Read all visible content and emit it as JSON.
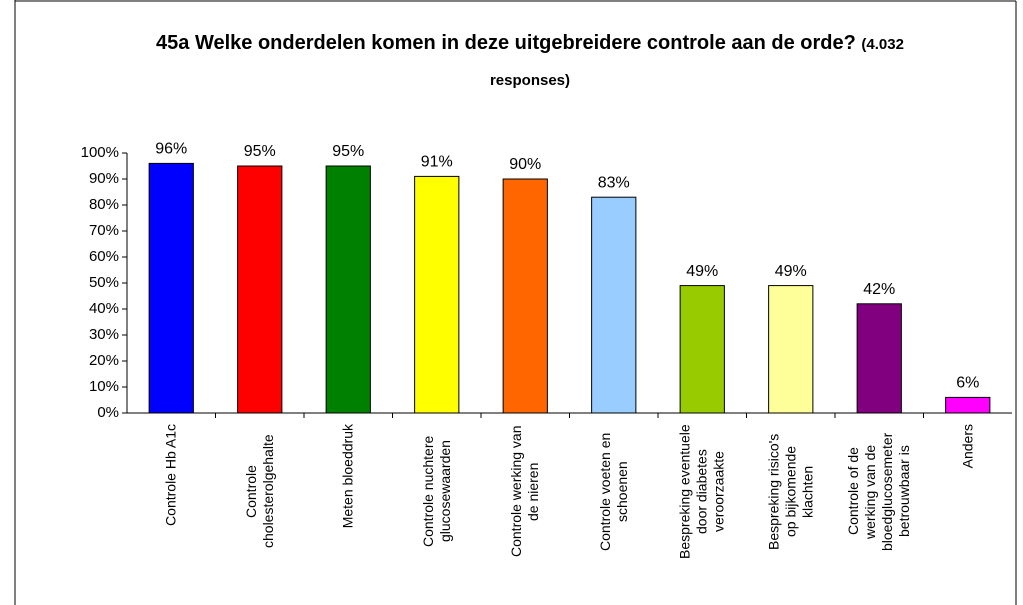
{
  "chart_data": {
    "type": "bar",
    "title": "45a Welke onderdelen komen in deze uitgebreidere controle aan de orde?",
    "subtitle": "(4.032 responses)",
    "categories": [
      "Controle Hb A1c",
      "Controle cholesterolgehalte",
      "Meten bloeddruk",
      "Controle nuchtere glucosewaarden",
      "Controle werking van de nieren",
      "Controle voeten en schoenen",
      "Bespreking eventuele door diabetes veroorzaakte",
      "Bespreking risico's op bijkomende klachten",
      "Controle of de werking van de bloedglucosemeter betrouwbaar is",
      "Anders"
    ],
    "values": [
      96,
      95,
      95,
      91,
      90,
      83,
      49,
      49,
      42,
      6
    ],
    "value_labels": [
      "96%",
      "95%",
      "95%",
      "91%",
      "90%",
      "83%",
      "49%",
      "49%",
      "42%",
      "6%"
    ],
    "colors": [
      "#0000ff",
      "#ff0000",
      "#008000",
      "#ffff00",
      "#ff6600",
      "#99ccff",
      "#99cc00",
      "#ffff99",
      "#800080",
      "#ff00ff"
    ],
    "ylim": [
      0,
      100
    ],
    "yticks": [
      {
        "value": 0,
        "label": "0%"
      },
      {
        "value": 10,
        "label": "10%"
      },
      {
        "value": 20,
        "label": "20%"
      },
      {
        "value": 30,
        "label": "30%"
      },
      {
        "value": 40,
        "label": "40%"
      },
      {
        "value": 50,
        "label": "50%"
      },
      {
        "value": 60,
        "label": "60%"
      },
      {
        "value": 70,
        "label": "70%"
      },
      {
        "value": 80,
        "label": "80%"
      },
      {
        "value": 90,
        "label": "90%"
      },
      {
        "value": 100,
        "label": "100%"
      }
    ],
    "grid": false
  }
}
